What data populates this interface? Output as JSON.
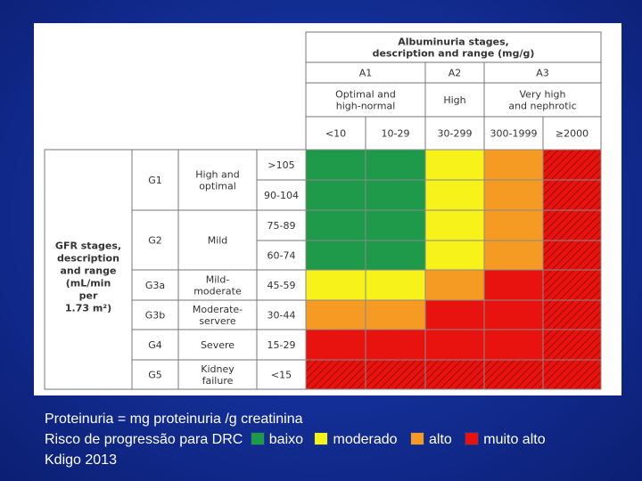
{
  "header": {
    "title_lines": [
      "Albuminuria stages,",
      "description and range (mg/g)"
    ],
    "stages": [
      "A1",
      "A2",
      "A3"
    ],
    "descriptions": [
      [
        "Optimal and",
        "high-normal"
      ],
      [
        "High"
      ],
      [
        "Very high",
        "and nephrotic"
      ]
    ],
    "ranges": [
      "<10",
      "10-29",
      "30-299",
      "300-1999",
      "≥2000"
    ]
  },
  "gfr": {
    "title_lines": [
      "GFR stages,",
      "description",
      "and range",
      "(mL/min",
      "per",
      "1.73 m²)"
    ],
    "stages": [
      {
        "code": "G1",
        "desc": [
          "High and",
          "optimal"
        ],
        "ranges": [
          ">105",
          "90-104"
        ]
      },
      {
        "code": "G2",
        "desc": [
          "Mild"
        ],
        "ranges": [
          "75-89",
          "60-74"
        ]
      },
      {
        "code": "G3a",
        "desc": [
          "Mild-",
          "moderate"
        ],
        "ranges": [
          "45-59"
        ]
      },
      {
        "code": "G3b",
        "desc": [
          "Moderate-",
          "servere"
        ],
        "ranges": [
          "30-44"
        ]
      },
      {
        "code": "G4",
        "desc": [
          "Severe"
        ],
        "ranges": [
          "15-29"
        ]
      },
      {
        "code": "G5",
        "desc": [
          "Kidney",
          "failure"
        ],
        "ranges": [
          "<15"
        ]
      }
    ]
  },
  "risk_levels": {
    "baixo": "#1e9a4a",
    "moderado": "#f6f21a",
    "alto": "#f59a23",
    "muito_alto": "#e8120e"
  },
  "grid": [
    [
      "baixo",
      "baixo",
      "moderado",
      "alto",
      "muito_alto"
    ],
    [
      "baixo",
      "baixo",
      "moderado",
      "alto",
      "muito_alto"
    ],
    [
      "baixo",
      "baixo",
      "moderado",
      "alto",
      "muito_alto"
    ],
    [
      "baixo",
      "baixo",
      "moderado",
      "alto",
      "muito_alto"
    ],
    [
      "moderado",
      "moderado",
      "alto",
      "muito_alto",
      "muito_alto"
    ],
    [
      "alto",
      "alto",
      "muito_alto",
      "muito_alto",
      "muito_alto"
    ],
    [
      "muito_alto",
      "muito_alto",
      "muito_alto",
      "muito_alto",
      "muito_alto"
    ],
    [
      "muito_alto",
      "muito_alto",
      "muito_alto",
      "muito_alto",
      "muito_alto"
    ]
  ],
  "caption": {
    "line1": "Proteinuria = mg proteinuria /g creatinina",
    "line2_prefix": "Risco de progressão para DRC",
    "legend": [
      {
        "label": "baixo",
        "color": "#1e9a4a"
      },
      {
        "label": "moderado",
        "color": "#f6f21a"
      },
      {
        "label": "alto",
        "color": "#f59a23"
      },
      {
        "label": "muito alto",
        "color": "#e8120e"
      }
    ],
    "line3": "Kdigo 2013"
  }
}
